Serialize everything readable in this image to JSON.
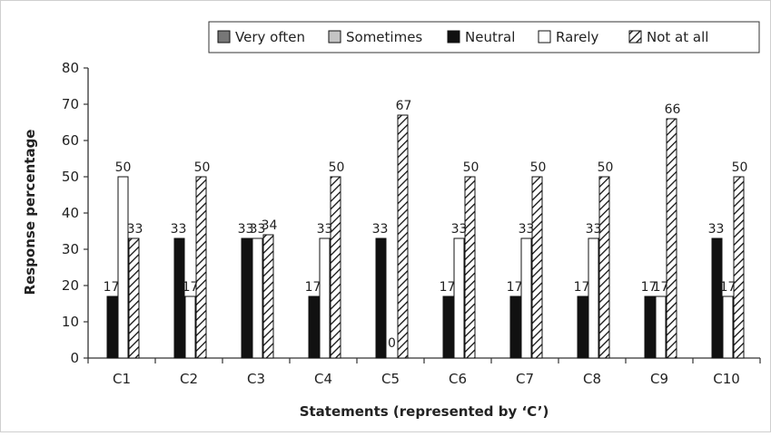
{
  "chart_data": {
    "type": "bar",
    "xlabel": "Statements (represented by ‘C’)",
    "ylabel": "Response percentage",
    "ylim": [
      0,
      80
    ],
    "yticks": [
      0,
      10,
      20,
      30,
      40,
      50,
      60,
      70,
      80
    ],
    "categories": [
      "C1",
      "C2",
      "C3",
      "C4",
      "C5",
      "C6",
      "C7",
      "C8",
      "C9",
      "C10"
    ],
    "series": [
      {
        "name": "Very often",
        "values": [
          0,
          0,
          0,
          0,
          0,
          0,
          0,
          0,
          0,
          0
        ],
        "labels": [
          null,
          null,
          null,
          null,
          null,
          null,
          null,
          null,
          null,
          null
        ]
      },
      {
        "name": "Sometimes",
        "values": [
          0,
          0,
          0,
          0,
          0,
          0,
          0,
          0,
          0,
          0
        ],
        "labels": [
          null,
          null,
          null,
          null,
          null,
          null,
          null,
          null,
          null,
          null
        ]
      },
      {
        "name": "Neutral",
        "values": [
          17,
          33,
          33,
          17,
          33,
          17,
          17,
          17,
          17,
          33
        ],
        "labels": [
          "17",
          "33",
          "33",
          "17",
          "33",
          "17",
          "17",
          "17",
          "17",
          "33"
        ]
      },
      {
        "name": "Rarely",
        "values": [
          50,
          17,
          33,
          33,
          0,
          33,
          33,
          33,
          17,
          17
        ],
        "labels": [
          "50",
          "17",
          "33",
          "33",
          "0",
          "33",
          "33",
          "33",
          "17",
          "17"
        ]
      },
      {
        "name": "Not at all",
        "values": [
          33,
          50,
          34,
          50,
          67,
          50,
          50,
          50,
          66,
          50
        ],
        "labels": [
          "33",
          "50",
          "34",
          "50",
          "67",
          "50",
          "50",
          "50",
          "66",
          "50"
        ]
      }
    ],
    "legend_position": "top-right",
    "grid": false
  },
  "colors": {
    "very_often": "#777777",
    "sometimes": "#c4c4c4",
    "neutral": "#111111",
    "rarely": "#ffffff",
    "not_at_all": "hatched",
    "axis": "#333333"
  }
}
